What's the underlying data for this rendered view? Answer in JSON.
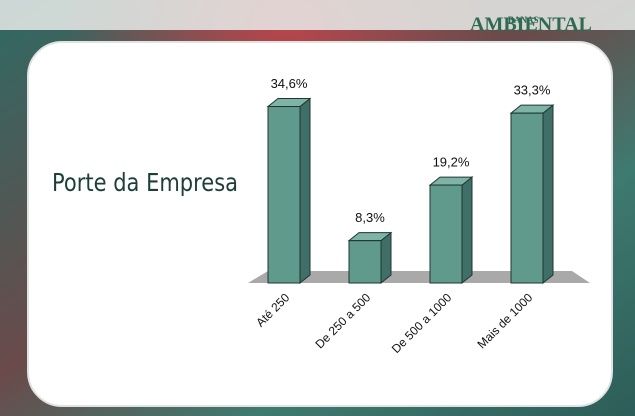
{
  "logo": {
    "small": "BANAS",
    "main": "AMBIENTAL"
  },
  "chart_data": {
    "type": "bar",
    "title": "Porte da Empresa",
    "categories": [
      "Até 250",
      "De 250 a 500",
      "De 500 a 1000",
      "Mais de 1000"
    ],
    "values": [
      34.6,
      8.3,
      19.2,
      33.3
    ],
    "value_labels": [
      "34,6%",
      "8,3%",
      "19,2%",
      "33,3%"
    ],
    "color": "#5f9a8c"
  }
}
